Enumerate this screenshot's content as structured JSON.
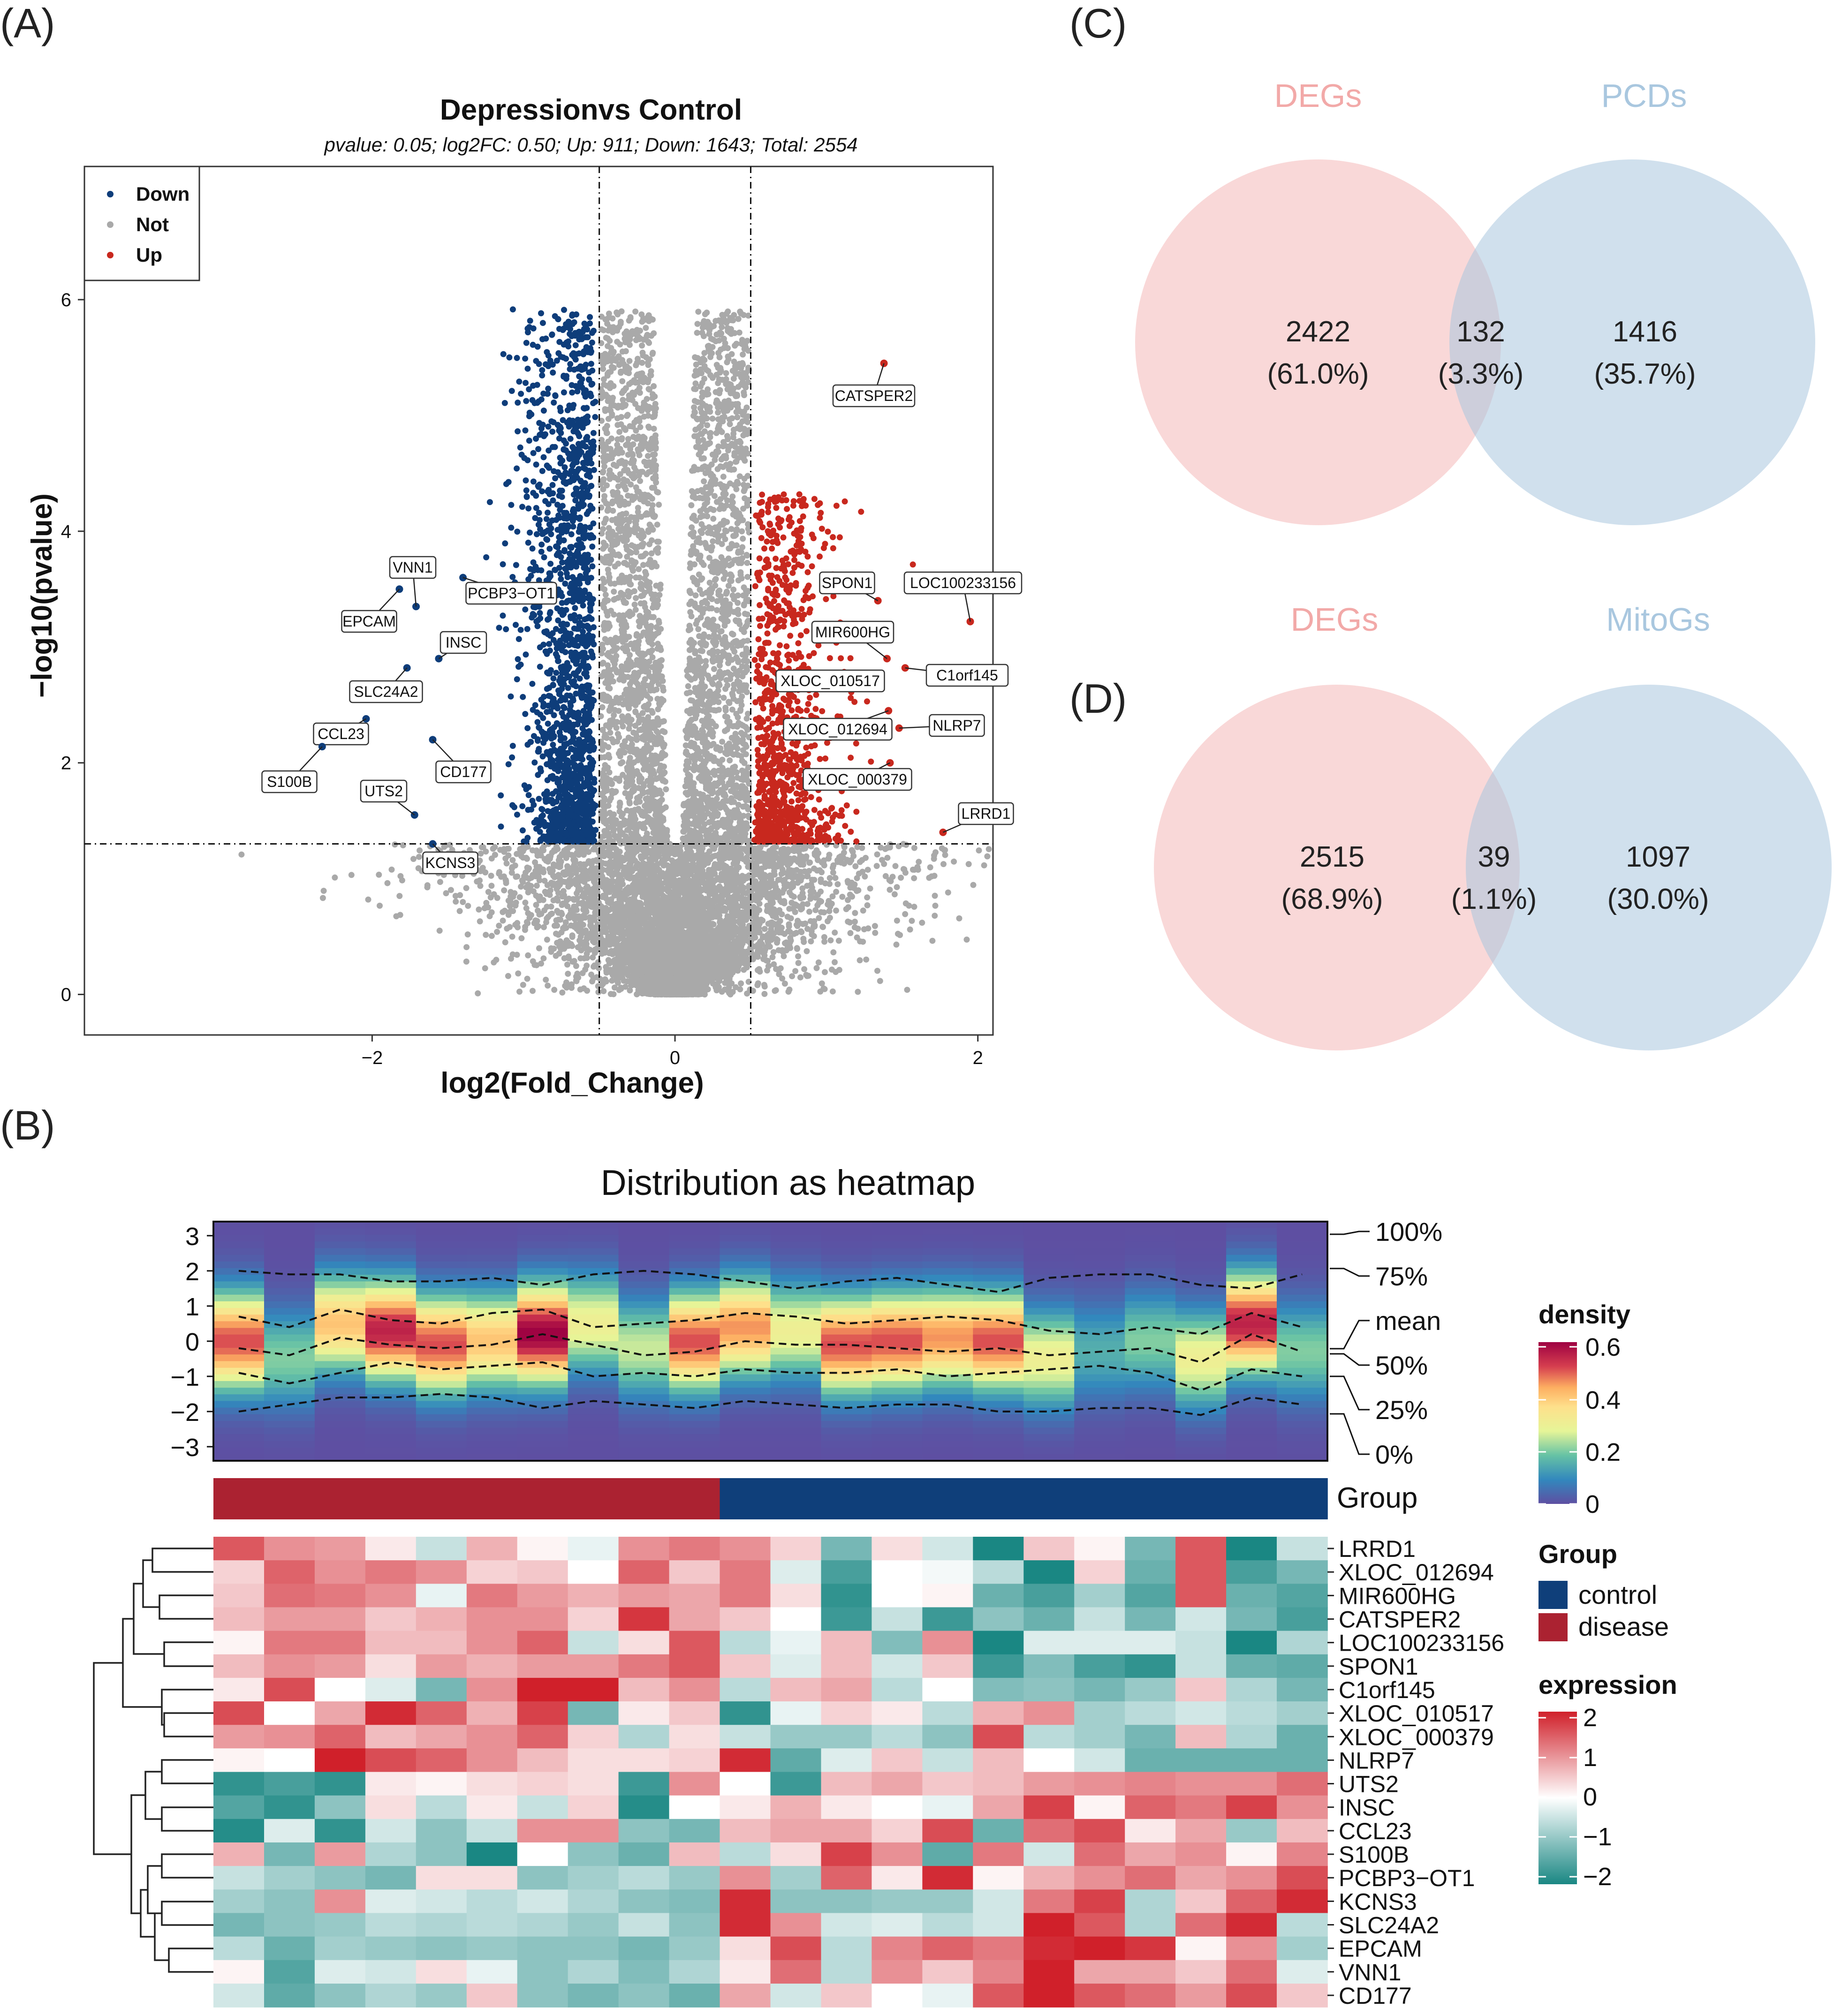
{
  "panels": {
    "A": {
      "label": "(A)"
    },
    "B": {
      "label": "(B)"
    },
    "C": {
      "label": "(C)"
    },
    "D": {
      "label": "(D)"
    }
  },
  "chart_data": [
    {
      "id": "volcano",
      "type": "scatter",
      "title": "Depressionvs Control",
      "subtitle": "pvalue:  0.05; log2FC: 0.50; Up: 911; Down: 1643; Total: 2554",
      "xlabel": "log2(Fold_Change)",
      "ylabel": "−log10(pvalue)",
      "xlim": [
        -3.9,
        2.1
      ],
      "ylim": [
        -0.35,
        7.15
      ],
      "xticks": [
        -2,
        0,
        2
      ],
      "xtick_labels": [
        "−2",
        "0",
        "2"
      ],
      "yticks": [
        0,
        2,
        4,
        6
      ],
      "ytick_labels": [
        "0",
        "2",
        "4",
        "6"
      ],
      "thresholds": {
        "log2fc": 0.5,
        "neglog10p": 1.3
      },
      "counts": {
        "up": 911,
        "down": 1643,
        "total": 2554
      },
      "legend": {
        "position": "top-left",
        "items": [
          {
            "name": "Down",
            "color": "#0e3d7a"
          },
          {
            "name": "Not",
            "color": "#a9a9a9"
          },
          {
            "name": "Up",
            "color": "#c8281e"
          }
        ]
      },
      "labeled_genes": [
        {
          "gene": "VNN1",
          "x": -1.71,
          "y": 3.35,
          "side": "down"
        },
        {
          "gene": "EPCAM",
          "x": -1.82,
          "y": 3.5,
          "side": "down"
        },
        {
          "gene": "PCBP3−OT1",
          "x": -1.4,
          "y": 3.6,
          "side": "down"
        },
        {
          "gene": "INSC",
          "x": -1.56,
          "y": 2.9,
          "side": "down"
        },
        {
          "gene": "SLC24A2",
          "x": -1.77,
          "y": 2.82,
          "side": "down"
        },
        {
          "gene": "CCL23",
          "x": -2.04,
          "y": 2.38,
          "side": "down"
        },
        {
          "gene": "S100B",
          "x": -2.33,
          "y": 2.14,
          "side": "down"
        },
        {
          "gene": "CD177",
          "x": -1.6,
          "y": 2.2,
          "side": "down"
        },
        {
          "gene": "UTS2",
          "x": -1.72,
          "y": 1.55,
          "side": "down"
        },
        {
          "gene": "KCNS3",
          "x": -1.6,
          "y": 1.3,
          "side": "down"
        },
        {
          "gene": "CATSPER2",
          "x": 1.38,
          "y": 5.45,
          "side": "up"
        },
        {
          "gene": "SPON1",
          "x": 1.34,
          "y": 3.4,
          "side": "up"
        },
        {
          "gene": "LOC100233156",
          "x": 1.95,
          "y": 3.22,
          "side": "up"
        },
        {
          "gene": "MIR600HG",
          "x": 1.4,
          "y": 2.9,
          "side": "up"
        },
        {
          "gene": "C1orf145",
          "x": 1.52,
          "y": 2.82,
          "side": "up"
        },
        {
          "gene": "XLOC_010517",
          "x": 1.33,
          "y": 2.68,
          "side": "up"
        },
        {
          "gene": "XLOC_012694",
          "x": 1.41,
          "y": 2.45,
          "side": "up"
        },
        {
          "gene": "NLRP7",
          "x": 1.48,
          "y": 2.3,
          "side": "up"
        },
        {
          "gene": "XLOC_000379",
          "x": 1.42,
          "y": 2.0,
          "side": "up"
        },
        {
          "gene": "LRRD1",
          "x": 1.77,
          "y": 1.4,
          "side": "up"
        }
      ]
    },
    {
      "id": "distribution",
      "type": "heatmap",
      "title": "Distribution as heatmap",
      "n_samples": 22,
      "ylim": [
        -3.4,
        3.4
      ],
      "yticks": [
        3,
        2,
        1,
        0,
        -1,
        -2,
        -3
      ],
      "ytick_labels": [
        "3",
        "2",
        "1",
        "0",
        "−1",
        "−2",
        "−3"
      ],
      "quantile_labels": [
        "100%",
        "75%",
        "mean",
        "50%",
        "25%",
        "0%"
      ],
      "density_centers": [
        0.0,
        -0.5,
        0.5,
        0.3,
        -0.1,
        0.0,
        0.2,
        0.5,
        -0.2,
        0.0,
        0.4,
        0.3,
        -0.1,
        0.0,
        0.1,
        0.0,
        -0.5,
        -0.3,
        0.0,
        -0.5,
        0.5,
        -0.3
      ],
      "density_peaks": [
        0.5,
        0.2,
        0.4,
        0.55,
        0.5,
        0.4,
        0.6,
        0.3,
        0.25,
        0.5,
        0.45,
        0.3,
        0.5,
        0.5,
        0.45,
        0.5,
        0.3,
        0.15,
        0.2,
        0.3,
        0.55,
        0.2
      ],
      "q75": [
        2,
        1.9,
        1.9,
        1.7,
        1.7,
        1.8,
        1.6,
        1.9,
        2,
        1.9,
        1.7,
        1.5,
        1.7,
        1.8,
        1.6,
        1.4,
        1.8,
        1.9,
        1.9,
        1.6,
        1.5,
        1.9
      ],
      "mean_line": [
        0.7,
        0.4,
        0.9,
        0.6,
        0.5,
        0.8,
        0.9,
        0.4,
        0.5,
        0.6,
        0.8,
        0.7,
        0.5,
        0.6,
        0.7,
        0.6,
        0.3,
        0.2,
        0.4,
        0.2,
        0.8,
        0.4
      ],
      "median_line": [
        -0.2,
        -0.4,
        0.1,
        -0.1,
        -0.2,
        -0.1,
        0.2,
        -0.1,
        -0.4,
        -0.3,
        0.0,
        -0.1,
        -0.1,
        -0.2,
        -0.3,
        -0.2,
        -0.4,
        -0.3,
        -0.2,
        -0.6,
        0.2,
        -0.3
      ],
      "q25": [
        -0.9,
        -1.2,
        -0.9,
        -0.6,
        -0.8,
        -0.7,
        -0.6,
        -1.0,
        -0.9,
        -1.0,
        -0.8,
        -0.9,
        -0.9,
        -0.8,
        -1.0,
        -0.9,
        -0.8,
        -0.7,
        -0.9,
        -1.4,
        -0.8,
        -1.0
      ],
      "q0": [
        -2,
        -1.8,
        -1.6,
        -1.6,
        -1.5,
        -1.6,
        -1.9,
        -1.7,
        -1.8,
        -1.9,
        -1.7,
        -1.8,
        -1.9,
        -1.8,
        -1.8,
        -2,
        -2,
        -1.9,
        -1.9,
        -2.1,
        -1.6,
        -1.8
      ],
      "legend": {
        "title": "density",
        "ticks": [
          "0.6",
          "0.4",
          "0.2",
          "0"
        ]
      }
    },
    {
      "id": "expression_heatmap",
      "type": "heatmap",
      "group_label": "Group",
      "groups": [
        {
          "name": "control",
          "color": "#0f3f7a"
        },
        {
          "name": "disease",
          "color": "#ab2231"
        }
      ],
      "sample_groups": [
        "disease",
        "disease",
        "disease",
        "disease",
        "disease",
        "disease",
        "disease",
        "disease",
        "disease",
        "disease",
        "control",
        "control",
        "control",
        "control",
        "control",
        "control",
        "control",
        "control",
        "control",
        "control",
        "control",
        "control"
      ],
      "rows": [
        "LRRD1",
        "XLOC_012694",
        "MIR600HG",
        "CATSPER2",
        "LOC100233156",
        "SPON1",
        "C1orf145",
        "XLOC_010517",
        "XLOC_000379",
        "NLRP7",
        "UTS2",
        "INSC",
        "CCL23",
        "S100B",
        "PCBP3−OT1",
        "KCNS3",
        "SLC24A2",
        "EPCAM",
        "VNN1",
        "CD177"
      ],
      "values": [
        [
          1.5,
          1.0,
          0.9,
          0.2,
          -0.5,
          0.7,
          0.1,
          -0.2,
          1.0,
          1.2,
          1.0,
          0.4,
          -1.2,
          0.3,
          -0.4,
          -2.0,
          0.5,
          0.1,
          -1.2,
          1.5,
          -2.0,
          -0.5
        ],
        [
          0.4,
          1.4,
          1.0,
          1.2,
          1.0,
          0.4,
          0.5,
          0.0,
          1.4,
          0.5,
          1.2,
          -0.3,
          -1.6,
          0.0,
          -0.1,
          -0.6,
          -2.0,
          0.4,
          -1.3,
          1.5,
          -1.6,
          -1.2
        ],
        [
          0.5,
          1.3,
          1.2,
          1.0,
          -0.2,
          1.2,
          0.9,
          0.7,
          0.9,
          0.8,
          1.2,
          0.3,
          -1.8,
          0.0,
          0.1,
          -1.3,
          -1.6,
          -0.8,
          -1.5,
          1.5,
          -1.3,
          -1.5
        ],
        [
          0.6,
          0.9,
          0.9,
          0.5,
          0.7,
          1.0,
          1.0,
          0.4,
          1.8,
          0.8,
          0.5,
          0.0,
          -1.7,
          -0.5,
          -1.7,
          -1.0,
          -1.3,
          -0.5,
          -1.2,
          -0.4,
          -1.2,
          -1.6
        ],
        [
          0.1,
          1.2,
          1.2,
          0.6,
          0.6,
          1.0,
          1.4,
          -0.5,
          0.3,
          1.5,
          -0.6,
          -0.2,
          0.6,
          -1.1,
          1.0,
          -2.0,
          -0.3,
          -0.3,
          -0.3,
          -0.5,
          -2.0,
          -0.7
        ],
        [
          0.6,
          1.0,
          0.9,
          0.3,
          0.9,
          0.7,
          0.9,
          0.9,
          1.2,
          1.5,
          0.5,
          -0.3,
          0.6,
          -0.4,
          0.5,
          -1.7,
          -1.1,
          -1.6,
          -1.8,
          -0.5,
          -1.3,
          -1.4
        ],
        [
          0.2,
          1.6,
          0.0,
          -0.3,
          -1.2,
          1.0,
          2.0,
          2.0,
          0.6,
          1.0,
          -0.6,
          0.6,
          0.8,
          -0.6,
          0.0,
          -1.1,
          -1.0,
          -1.2,
          -0.9,
          0.5,
          -0.7,
          -1.2
        ],
        [
          1.6,
          0.0,
          0.8,
          1.9,
          1.4,
          0.7,
          1.7,
          -1.2,
          0.2,
          0.5,
          -1.8,
          -0.2,
          0.4,
          0.2,
          -0.6,
          0.7,
          1.0,
          -0.8,
          -0.6,
          -0.4,
          -0.6,
          -0.8
        ],
        [
          0.9,
          1.0,
          1.4,
          0.6,
          0.8,
          1.0,
          1.4,
          0.4,
          -0.7,
          0.3,
          -0.5,
          -0.9,
          -0.9,
          -0.6,
          -1.0,
          1.6,
          -0.6,
          -0.8,
          -1.2,
          0.6,
          -0.7,
          -1.3
        ],
        [
          0.1,
          0.0,
          2.0,
          1.6,
          1.4,
          1.0,
          0.6,
          0.3,
          0.3,
          0.4,
          1.9,
          -1.4,
          -0.3,
          0.5,
          -0.5,
          0.6,
          0.0,
          -0.4,
          -1.3,
          -1.3,
          -1.3,
          -1.3
        ],
        [
          -1.8,
          -1.6,
          -1.8,
          0.2,
          0.1,
          0.3,
          0.4,
          0.3,
          -1.7,
          1.0,
          0.0,
          -1.7,
          0.6,
          0.8,
          0.5,
          0.6,
          0.9,
          1.0,
          1.1,
          1.0,
          1.0,
          1.3
        ],
        [
          -1.5,
          -1.8,
          -1.0,
          0.3,
          -0.6,
          0.2,
          -0.5,
          0.4,
          -1.9,
          0.0,
          0.2,
          0.7,
          0.2,
          0.0,
          -0.2,
          0.8,
          1.7,
          0.1,
          1.4,
          1.2,
          1.7,
          1.0
        ],
        [
          -1.9,
          -0.3,
          -1.8,
          -0.4,
          -1.0,
          -0.5,
          1.0,
          1.0,
          -1.0,
          -1.2,
          0.6,
          0.8,
          0.8,
          0.4,
          1.6,
          -1.3,
          1.3,
          1.6,
          0.2,
          0.8,
          -0.9,
          0.6
        ],
        [
          0.7,
          -1.2,
          0.9,
          -0.7,
          -1.0,
          -2.0,
          0.0,
          -1.0,
          -1.3,
          0.6,
          -0.6,
          0.3,
          1.7,
          1.0,
          -1.4,
          1.2,
          -0.4,
          1.3,
          0.8,
          1.0,
          0.1,
          1.1
        ],
        [
          -0.5,
          -0.8,
          -1.0,
          -1.2,
          0.3,
          0.3,
          -1.0,
          -0.8,
          -0.6,
          -0.9,
          1.0,
          -0.8,
          1.4,
          0.2,
          1.9,
          0.1,
          0.7,
          1.0,
          1.3,
          0.8,
          1.0,
          1.6
        ],
        [
          -0.8,
          -1.0,
          1.0,
          -0.3,
          -0.4,
          -0.6,
          -0.4,
          -0.7,
          -1.0,
          -1.1,
          1.9,
          -1.0,
          -1.0,
          -0.9,
          -0.9,
          -0.4,
          1.2,
          1.7,
          -0.7,
          0.5,
          1.4,
          1.9
        ],
        [
          -1.2,
          -1.0,
          -0.9,
          -0.6,
          -0.7,
          -0.6,
          -0.7,
          -0.9,
          -0.5,
          -1.0,
          1.9,
          1.0,
          -0.4,
          -0.3,
          -0.6,
          -0.4,
          2.0,
          1.5,
          -0.7,
          1.3,
          1.9,
          -0.6
        ],
        [
          -0.6,
          -1.3,
          -0.8,
          -0.9,
          -1.0,
          -0.9,
          -1.0,
          -1.0,
          -1.2,
          -0.9,
          0.3,
          1.6,
          -0.6,
          1.1,
          1.4,
          1.2,
          1.9,
          2.0,
          1.8,
          0.1,
          1.0,
          -0.8
        ],
        [
          0.1,
          -1.5,
          -0.3,
          -0.4,
          0.3,
          -0.2,
          -1.0,
          -0.7,
          -1.1,
          -0.7,
          0.2,
          1.3,
          -0.6,
          1.0,
          0.5,
          1.1,
          2.0,
          0.8,
          0.8,
          0.5,
          1.3,
          -0.3
        ],
        [
          -0.4,
          -1.4,
          -1.0,
          -0.7,
          -0.9,
          0.5,
          -1.0,
          -1.2,
          -1.0,
          -1.3,
          0.8,
          -0.4,
          0.5,
          0.0,
          -0.2,
          1.5,
          2.0,
          1.5,
          1.3,
          0.9,
          1.6,
          0.5
        ]
      ],
      "legend": {
        "title": "expression",
        "ticks": [
          "2",
          "1",
          "0",
          "−1",
          "−2"
        ]
      }
    },
    {
      "id": "venn_C",
      "type": "venn",
      "sets": [
        {
          "name": "DEGs",
          "color": "#f2a9a8"
        },
        {
          "name": "PCDs",
          "color": "#a9c7df"
        }
      ],
      "regions": [
        {
          "value": "2422",
          "pct": "(61.0%)"
        },
        {
          "value": "132",
          "pct": "(3.3%)"
        },
        {
          "value": "1416",
          "pct": "(35.7%)"
        }
      ]
    },
    {
      "id": "venn_D",
      "type": "venn",
      "sets": [
        {
          "name": "DEGs",
          "color": "#f2a9a8"
        },
        {
          "name": "MitoGs",
          "color": "#a9c7df"
        }
      ],
      "regions": [
        {
          "value": "2515",
          "pct": "(68.9%)"
        },
        {
          "value": "39",
          "pct": "(1.1%)"
        },
        {
          "value": "1097",
          "pct": "(30.0%)"
        }
      ]
    }
  ]
}
